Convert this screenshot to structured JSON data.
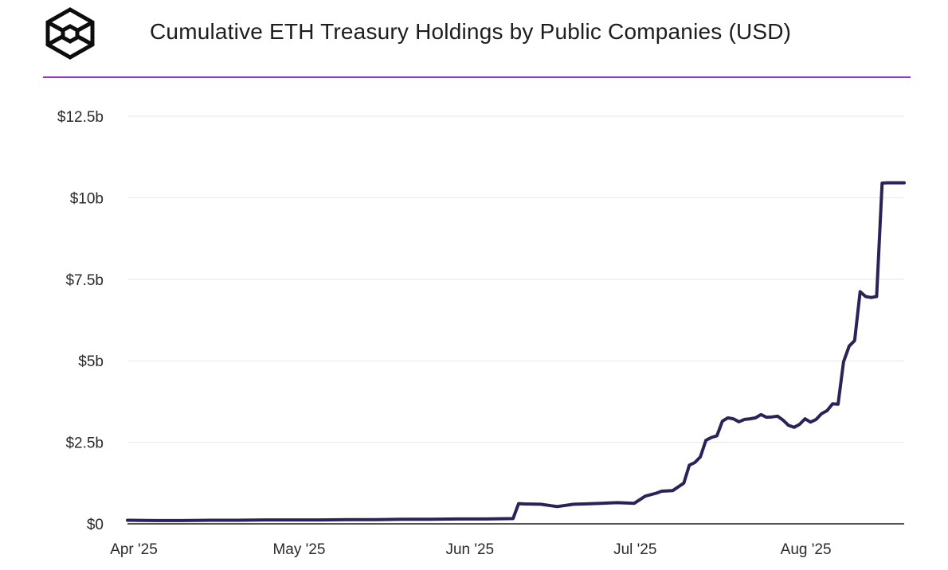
{
  "header": {
    "title": "Cumulative ETH Treasury Holdings by Public Companies (USD)",
    "logo_icon": "cube-logo-icon",
    "accent_color": "#9b30d9"
  },
  "chart_data": {
    "type": "line",
    "title": "Cumulative ETH Treasury Holdings by Public Companies (USD)",
    "xlabel": "",
    "ylabel": "",
    "ylim": [
      0,
      12.5
    ],
    "xlim": [
      "2025-04-01",
      "2025-08-20"
    ],
    "grid": true,
    "line_color": "#2b2358",
    "y_ticks": [
      {
        "value": 0,
        "label": "$0"
      },
      {
        "value": 2.5,
        "label": "$2.5b"
      },
      {
        "value": 5,
        "label": "$5b"
      },
      {
        "value": 7.5,
        "label": "$7.5b"
      },
      {
        "value": 10,
        "label": "$10b"
      },
      {
        "value": 12.5,
        "label": "$12.5b"
      }
    ],
    "x_ticks": [
      {
        "date": "2025-04-01",
        "label": "Apr '25"
      },
      {
        "date": "2025-05-01",
        "label": "May '25"
      },
      {
        "date": "2025-06-01",
        "label": "Jun '25"
      },
      {
        "date": "2025-07-01",
        "label": "Jul '25"
      },
      {
        "date": "2025-08-01",
        "label": "Aug '25"
      }
    ],
    "series": [
      {
        "x": [
          "2025-04-01",
          "2025-04-06",
          "2025-04-11",
          "2025-04-16",
          "2025-04-21",
          "2025-04-26",
          "2025-05-01",
          "2025-05-06",
          "2025-05-11",
          "2025-05-16",
          "2025-05-21",
          "2025-05-26",
          "2025-05-31",
          "2025-06-05",
          "2025-06-10",
          "2025-06-11",
          "2025-06-12",
          "2025-06-15",
          "2025-06-18",
          "2025-06-21",
          "2025-06-23",
          "2025-06-26",
          "2025-06-29",
          "2025-07-02",
          "2025-07-04",
          "2025-07-06",
          "2025-07-07",
          "2025-07-09",
          "2025-07-11",
          "2025-07-12",
          "2025-07-13",
          "2025-07-14",
          "2025-07-15",
          "2025-07-16",
          "2025-07-17",
          "2025-07-18",
          "2025-07-19",
          "2025-07-20",
          "2025-07-21",
          "2025-07-22",
          "2025-07-23",
          "2025-07-24",
          "2025-07-25",
          "2025-07-26",
          "2025-07-27",
          "2025-07-28",
          "2025-07-29",
          "2025-07-30",
          "2025-07-31",
          "2025-08-01",
          "2025-08-02",
          "2025-08-03",
          "2025-08-04",
          "2025-08-05",
          "2025-08-06",
          "2025-08-07",
          "2025-08-08",
          "2025-08-09",
          "2025-08-10",
          "2025-08-11",
          "2025-08-12",
          "2025-08-13",
          "2025-08-14",
          "2025-08-15",
          "2025-08-16",
          "2025-08-17",
          "2025-08-18",
          "2025-08-19",
          "2025-08-20"
        ],
        "values": [
          0.11,
          0.1,
          0.1,
          0.11,
          0.11,
          0.12,
          0.12,
          0.12,
          0.13,
          0.13,
          0.14,
          0.14,
          0.15,
          0.15,
          0.16,
          0.62,
          0.61,
          0.6,
          0.53,
          0.6,
          0.61,
          0.63,
          0.65,
          0.63,
          0.85,
          0.94,
          1.0,
          1.02,
          1.25,
          1.8,
          1.88,
          2.05,
          2.56,
          2.65,
          2.7,
          3.15,
          3.25,
          3.22,
          3.13,
          3.2,
          3.22,
          3.25,
          3.35,
          3.27,
          3.28,
          3.3,
          3.18,
          3.02,
          2.96,
          3.05,
          3.22,
          3.12,
          3.2,
          3.38,
          3.47,
          3.68,
          3.67,
          4.97,
          5.45,
          5.62,
          7.12,
          6.97,
          6.94,
          6.97,
          10.45,
          10.46,
          10.46,
          10.46,
          10.46
        ]
      }
    ]
  }
}
